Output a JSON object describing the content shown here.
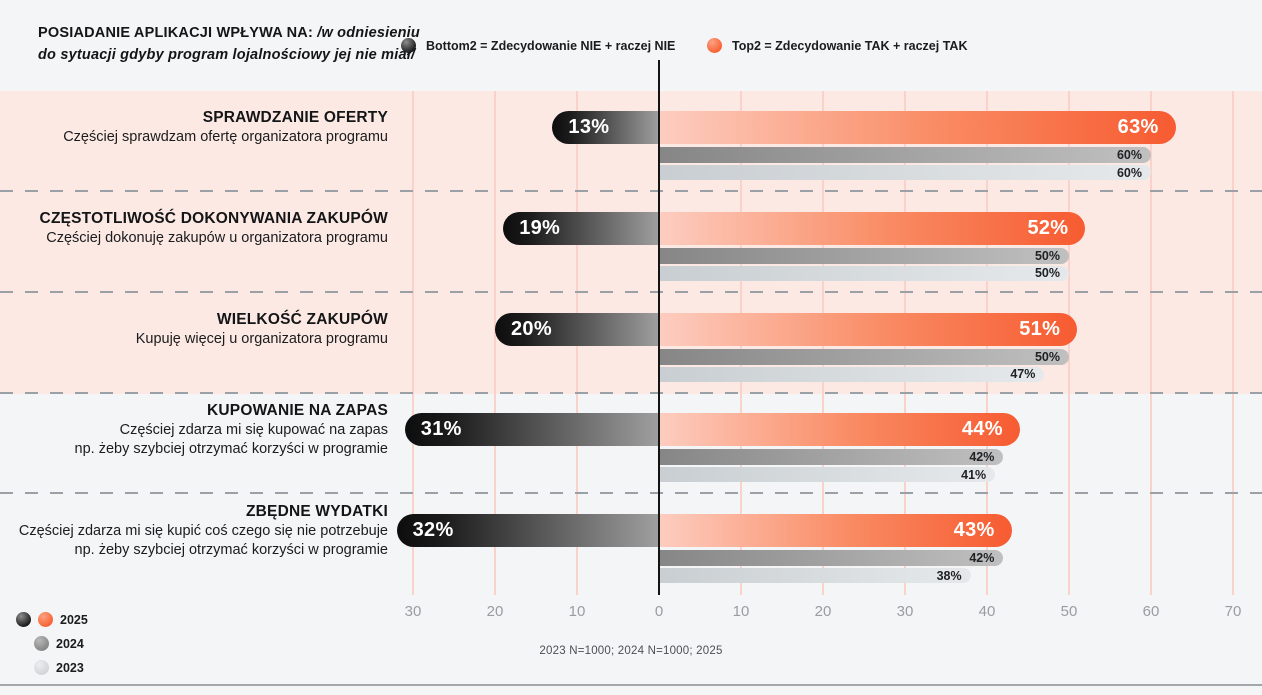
{
  "header": {
    "title_main": "POSIADANIE APLIKACJI WPŁYWA NA: ",
    "title_qualifier_line1": "/w odniesieniu",
    "title_qualifier_line2": "do sytuacji gdyby program lojalnościowy jej nie miał/"
  },
  "legend_top": {
    "bottom2": {
      "label": "Bottom2 = Zdecydowanie NIE + raczej NIE",
      "color": "#161616"
    },
    "top2": {
      "label": "Top2 = Zdecydowanie TAK + raczej TAK",
      "color": "#f7602f"
    }
  },
  "colors": {
    "page_background": "#f4f5f7",
    "highlight_band": "#fce9e4",
    "gridline": "#fbd2c9",
    "zero_line": "#141414",
    "axis_line": "#a2a7ab",
    "orange_bar_end": "#f75b31",
    "orange_bar_start": "#fdcdc0",
    "dark_bar_start": "#0d0d0d",
    "dark_bar_end": "#9f9f9f",
    "gray_2024": "#a0a0a0",
    "gray_2023": "#d8dcdf"
  },
  "chart_data": {
    "type": "bar",
    "orientation": "horizontal-diverging",
    "unit": "%",
    "title": "POSIADANIE APLIKACJI WPŁYWA NA: /w odniesieniu do sytuacji gdyby program lojalnościowy jej nie miał/",
    "axis_ticks": [
      -30,
      -20,
      -10,
      0,
      10,
      20,
      30,
      40,
      50,
      60,
      70
    ],
    "axis_tick_labels": [
      "30",
      "20",
      "10",
      "0",
      "10",
      "20",
      "30",
      "40",
      "50",
      "60",
      "70"
    ],
    "xlim": [
      -80,
      73.5
    ],
    "grid": true,
    "series_legend": [
      {
        "name": "Bottom2 = Zdecydowanie NIE + raczej NIE",
        "year": "2025",
        "side": "left"
      },
      {
        "name": "Top2 = Zdecydowanie TAK + raczej TAK",
        "year": "2025",
        "side": "right"
      },
      {
        "name": "Top2 2024",
        "year": "2024",
        "side": "right"
      },
      {
        "name": "Top2 2023",
        "year": "2023",
        "side": "right"
      }
    ],
    "rows": [
      {
        "title": "SPRAWDZANIE OFERTY",
        "subtitle_lines": [
          "Częściej sprawdzam ofertę organizatora programu"
        ],
        "bottom2_2025": 13,
        "top2_2025": 63,
        "top2_2024": 60,
        "top2_2023": 60,
        "highlighted": true
      },
      {
        "title": "CZĘSTOTLIWOŚĆ DOKONYWANIA ZAKUPÓW",
        "subtitle_lines": [
          "Częściej dokonuję zakupów u organizatora programu"
        ],
        "bottom2_2025": 19,
        "top2_2025": 52,
        "top2_2024": 50,
        "top2_2023": 50,
        "highlighted": true
      },
      {
        "title": "WIELKOŚĆ ZAKUPÓW",
        "subtitle_lines": [
          "Kupuję więcej u organizatora programu"
        ],
        "bottom2_2025": 20,
        "top2_2025": 51,
        "top2_2024": 50,
        "top2_2023": 47,
        "highlighted": true
      },
      {
        "title": "KUPOWANIE NA ZAPAS",
        "subtitle_lines": [
          "Częściej zdarza mi się kupować na zapas",
          "np. żeby szybciej otrzymać korzyści w programie"
        ],
        "bottom2_2025": 31,
        "top2_2025": 44,
        "top2_2024": 42,
        "top2_2023": 41,
        "highlighted": false
      },
      {
        "title": "ZBĘDNE WYDATKI",
        "subtitle_lines": [
          "Częściej zdarza mi się kupić coś czego się nie potrzebuje",
          "np. żeby szybciej otrzymać korzyści w programie"
        ],
        "bottom2_2025": 32,
        "top2_2025": 43,
        "top2_2024": 42,
        "top2_2023": 38,
        "highlighted": false
      }
    ]
  },
  "legend_bottom": [
    {
      "year": "2025",
      "dots": [
        "dark",
        "orange"
      ]
    },
    {
      "year": "2024",
      "dots": [
        "gray"
      ]
    },
    {
      "year": "2023",
      "dots": [
        "lgray"
      ]
    }
  ],
  "footnote": "2023 N=1000; 2024 N=1000; 2025"
}
